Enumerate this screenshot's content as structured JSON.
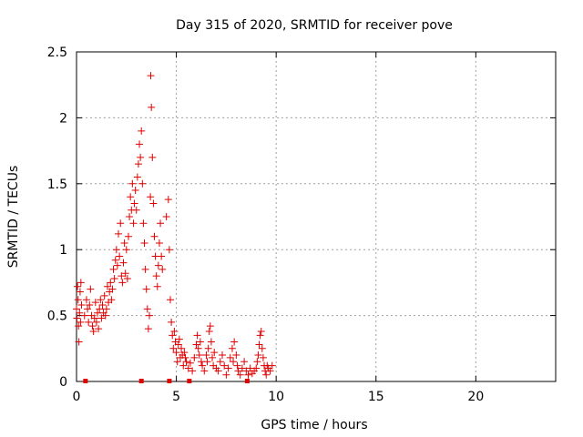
{
  "chart_data": {
    "type": "scatter",
    "title": "Day 315 of 2020, SRMTID for receiver pove",
    "xlabel": "GPS time / hours",
    "ylabel": "SRMTID / TECUs",
    "xlim": [
      0,
      24
    ],
    "ylim": [
      0,
      2.5
    ],
    "xticks": [
      "0",
      "5",
      "10",
      "15",
      "20"
    ],
    "yticks": [
      "0",
      "0.5",
      "1",
      "1.5",
      "2",
      "2.5"
    ],
    "grid": true,
    "marker": "plus",
    "series_color": "#e00000",
    "zero_points_x": [
      0.45,
      3.25,
      4.65,
      5.65,
      8.55
    ],
    "points": [
      [
        0.0,
        0.55
      ],
      [
        0.02,
        0.48
      ],
      [
        0.05,
        0.72
      ],
      [
        0.08,
        0.62
      ],
      [
        0.1,
        0.42
      ],
      [
        0.12,
        0.3
      ],
      [
        0.15,
        0.52
      ],
      [
        0.18,
        0.68
      ],
      [
        0.2,
        0.45
      ],
      [
        0.22,
        0.75
      ],
      [
        0.25,
        0.58
      ],
      [
        0.4,
        0.5
      ],
      [
        0.5,
        0.62
      ],
      [
        0.55,
        0.55
      ],
      [
        0.6,
        0.45
      ],
      [
        0.65,
        0.58
      ],
      [
        0.7,
        0.7
      ],
      [
        0.75,
        0.5
      ],
      [
        0.8,
        0.42
      ],
      [
        0.85,
        0.38
      ],
      [
        0.9,
        0.48
      ],
      [
        0.95,
        0.6
      ],
      [
        1.0,
        0.45
      ],
      [
        1.05,
        0.52
      ],
      [
        1.1,
        0.4
      ],
      [
        1.15,
        0.55
      ],
      [
        1.2,
        0.62
      ],
      [
        1.25,
        0.48
      ],
      [
        1.3,
        0.58
      ],
      [
        1.35,
        0.52
      ],
      [
        1.4,
        0.65
      ],
      [
        1.45,
        0.5
      ],
      [
        1.5,
        0.55
      ],
      [
        1.55,
        0.72
      ],
      [
        1.6,
        0.6
      ],
      [
        1.65,
        0.68
      ],
      [
        1.7,
        0.75
      ],
      [
        1.75,
        0.62
      ],
      [
        1.8,
        0.7
      ],
      [
        1.85,
        0.85
      ],
      [
        1.9,
        0.78
      ],
      [
        1.95,
        0.92
      ],
      [
        2.0,
        1.0
      ],
      [
        2.05,
        0.88
      ],
      [
        2.1,
        1.12
      ],
      [
        2.15,
        0.95
      ],
      [
        2.2,
        1.2
      ],
      [
        2.25,
        0.8
      ],
      [
        2.3,
        0.75
      ],
      [
        2.35,
        0.9
      ],
      [
        2.4,
        1.05
      ],
      [
        2.45,
        0.82
      ],
      [
        2.5,
        1.0
      ],
      [
        2.55,
        0.78
      ],
      [
        2.6,
        1.1
      ],
      [
        2.65,
        1.25
      ],
      [
        2.7,
        1.4
      ],
      [
        2.75,
        1.3
      ],
      [
        2.8,
        1.5
      ],
      [
        2.85,
        1.2
      ],
      [
        2.9,
        1.35
      ],
      [
        2.95,
        1.45
      ],
      [
        3.0,
        1.3
      ],
      [
        3.05,
        1.55
      ],
      [
        3.1,
        1.65
      ],
      [
        3.15,
        1.8
      ],
      [
        3.2,
        1.7
      ],
      [
        3.25,
        1.9
      ],
      [
        3.3,
        1.5
      ],
      [
        3.35,
        1.2
      ],
      [
        3.4,
        1.05
      ],
      [
        3.45,
        0.85
      ],
      [
        3.5,
        0.7
      ],
      [
        3.55,
        0.55
      ],
      [
        3.6,
        0.4
      ],
      [
        3.65,
        0.5
      ],
      [
        3.7,
        1.4
      ],
      [
        3.72,
        2.32
      ],
      [
        3.75,
        2.08
      ],
      [
        3.8,
        1.7
      ],
      [
        3.85,
        1.35
      ],
      [
        3.9,
        1.1
      ],
      [
        3.95,
        0.95
      ],
      [
        4.0,
        0.8
      ],
      [
        4.05,
        0.72
      ],
      [
        4.1,
        0.88
      ],
      [
        4.15,
        1.05
      ],
      [
        4.2,
        1.2
      ],
      [
        4.25,
        0.95
      ],
      [
        4.3,
        0.85
      ],
      [
        4.5,
        1.25
      ],
      [
        4.6,
        1.38
      ],
      [
        4.65,
        1.0
      ],
      [
        4.7,
        0.62
      ],
      [
        4.75,
        0.45
      ],
      [
        4.8,
        0.35
      ],
      [
        4.85,
        0.25
      ],
      [
        4.9,
        0.38
      ],
      [
        4.95,
        0.3
      ],
      [
        5.0,
        0.22
      ],
      [
        5.05,
        0.15
      ],
      [
        5.1,
        0.28
      ],
      [
        5.15,
        0.32
      ],
      [
        5.2,
        0.18
      ],
      [
        5.25,
        0.25
      ],
      [
        5.3,
        0.2
      ],
      [
        5.35,
        0.12
      ],
      [
        5.4,
        0.22
      ],
      [
        5.45,
        0.18
      ],
      [
        5.5,
        0.15
      ],
      [
        5.6,
        0.1
      ],
      [
        5.7,
        0.14
      ],
      [
        5.8,
        0.08
      ],
      [
        5.9,
        0.18
      ],
      [
        6.0,
        0.28
      ],
      [
        6.05,
        0.35
      ],
      [
        6.1,
        0.25
      ],
      [
        6.15,
        0.2
      ],
      [
        6.2,
        0.3
      ],
      [
        6.25,
        0.15
      ],
      [
        6.3,
        0.12
      ],
      [
        6.4,
        0.08
      ],
      [
        6.5,
        0.2
      ],
      [
        6.55,
        0.15
      ],
      [
        6.6,
        0.25
      ],
      [
        6.65,
        0.38
      ],
      [
        6.7,
        0.42
      ],
      [
        6.75,
        0.3
      ],
      [
        6.8,
        0.18
      ],
      [
        6.85,
        0.12
      ],
      [
        6.9,
        0.22
      ],
      [
        7.0,
        0.1
      ],
      [
        7.1,
        0.08
      ],
      [
        7.2,
        0.15
      ],
      [
        7.3,
        0.2
      ],
      [
        7.4,
        0.12
      ],
      [
        7.5,
        0.05
      ],
      [
        7.6,
        0.1
      ],
      [
        7.7,
        0.18
      ],
      [
        7.8,
        0.25
      ],
      [
        7.85,
        0.15
      ],
      [
        7.9,
        0.3
      ],
      [
        8.0,
        0.2
      ],
      [
        8.05,
        0.12
      ],
      [
        8.1,
        0.08
      ],
      [
        8.2,
        0.05
      ],
      [
        8.3,
        0.1
      ],
      [
        8.4,
        0.15
      ],
      [
        8.5,
        0.08
      ],
      [
        8.6,
        0.05
      ],
      [
        8.7,
        0.1
      ],
      [
        8.8,
        0.06
      ],
      [
        8.9,
        0.08
      ],
      [
        9.0,
        0.1
      ],
      [
        9.05,
        0.15
      ],
      [
        9.1,
        0.2
      ],
      [
        9.15,
        0.28
      ],
      [
        9.2,
        0.35
      ],
      [
        9.25,
        0.38
      ],
      [
        9.3,
        0.25
      ],
      [
        9.35,
        0.18
      ],
      [
        9.4,
        0.12
      ],
      [
        9.45,
        0.08
      ],
      [
        9.5,
        0.05
      ],
      [
        9.55,
        0.12
      ],
      [
        9.6,
        0.1
      ],
      [
        9.7,
        0.08
      ],
      [
        9.8,
        0.12
      ]
    ]
  }
}
